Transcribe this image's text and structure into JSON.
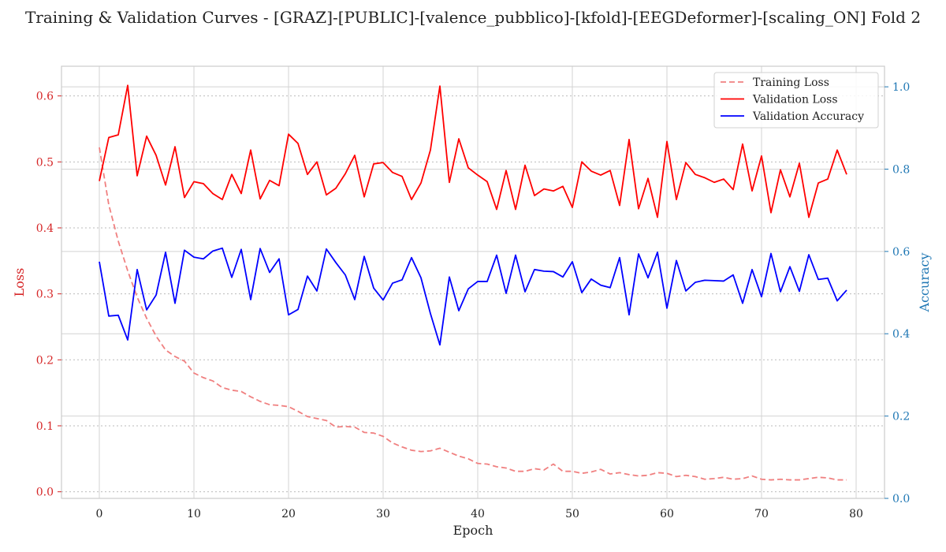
{
  "chart_data": {
    "type": "line",
    "title": "Training & Validation Curves - [GRAZ]-[PUBLIC]-[valence_pubblico]-[kfold]-[EEGDeformer]-[scaling_ON] Fold 2",
    "xlabel": "Epoch",
    "ylabel_left": "Loss",
    "ylabel_right": "Accuracy",
    "xlim": [
      -4,
      83
    ],
    "ylim_left": [
      -0.01,
      0.645
    ],
    "ylim_right": [
      0.0,
      1.05
    ],
    "x_ticks": [
      0,
      10,
      20,
      30,
      40,
      50,
      60,
      70,
      80
    ],
    "y_left_ticks": [
      0.0,
      0.1,
      0.2,
      0.3,
      0.4,
      0.5,
      0.6
    ],
    "y_right_ticks": [
      0.0,
      0.2,
      0.4,
      0.6,
      0.8,
      1.0
    ],
    "grid": true,
    "legend_position": "top-right",
    "colors": {
      "training_loss": "#f08080",
      "validation_loss": "#ff0000",
      "validation_accuracy": "#0000ff",
      "left_axis": "#d62728",
      "right_axis": "#1f77b4"
    },
    "series": [
      {
        "name": "Training Loss",
        "axis": "left",
        "style": "dashed",
        "values": [
          0.522,
          0.435,
          0.38,
          0.335,
          0.295,
          0.263,
          0.236,
          0.215,
          0.205,
          0.198,
          0.18,
          0.173,
          0.168,
          0.158,
          0.154,
          0.152,
          0.144,
          0.137,
          0.132,
          0.131,
          0.129,
          0.122,
          0.114,
          0.111,
          0.108,
          0.098,
          0.099,
          0.098,
          0.09,
          0.089,
          0.084,
          0.074,
          0.068,
          0.063,
          0.061,
          0.062,
          0.066,
          0.06,
          0.054,
          0.05,
          0.043,
          0.042,
          0.038,
          0.036,
          0.031,
          0.031,
          0.035,
          0.033,
          0.042,
          0.031,
          0.031,
          0.028,
          0.03,
          0.034,
          0.027,
          0.029,
          0.026,
          0.024,
          0.025,
          0.029,
          0.028,
          0.023,
          0.025,
          0.023,
          0.019,
          0.02,
          0.022,
          0.019,
          0.02,
          0.024,
          0.019,
          0.018,
          0.019,
          0.018,
          0.018,
          0.02,
          0.022,
          0.021,
          0.018,
          0.018
        ]
      },
      {
        "name": "Validation Loss",
        "axis": "left",
        "style": "solid",
        "values": [
          0.471,
          0.537,
          0.541,
          0.616,
          0.479,
          0.539,
          0.51,
          0.465,
          0.523,
          0.446,
          0.47,
          0.467,
          0.452,
          0.443,
          0.481,
          0.452,
          0.518,
          0.444,
          0.472,
          0.464,
          0.542,
          0.528,
          0.481,
          0.5,
          0.45,
          0.46,
          0.482,
          0.51,
          0.447,
          0.497,
          0.499,
          0.484,
          0.478,
          0.443,
          0.468,
          0.518,
          0.615,
          0.469,
          0.535,
          0.491,
          0.48,
          0.47,
          0.428,
          0.487,
          0.428,
          0.495,
          0.449,
          0.459,
          0.456,
          0.463,
          0.431,
          0.5,
          0.486,
          0.48,
          0.487,
          0.434,
          0.534,
          0.429,
          0.475,
          0.416,
          0.531,
          0.443,
          0.499,
          0.481,
          0.476,
          0.469,
          0.474,
          0.458,
          0.527,
          0.456,
          0.509,
          0.423,
          0.488,
          0.447,
          0.498,
          0.416,
          0.468,
          0.474,
          0.518,
          0.481
        ]
      },
      {
        "name": "Validation Accuracy",
        "axis": "right",
        "style": "solid",
        "values": [
          0.575,
          0.443,
          0.445,
          0.385,
          0.556,
          0.458,
          0.494,
          0.598,
          0.474,
          0.603,
          0.586,
          0.582,
          0.601,
          0.608,
          0.537,
          0.605,
          0.483,
          0.607,
          0.549,
          0.582,
          0.446,
          0.459,
          0.54,
          0.504,
          0.606,
          0.573,
          0.543,
          0.483,
          0.588,
          0.511,
          0.482,
          0.523,
          0.531,
          0.585,
          0.536,
          0.449,
          0.373,
          0.538,
          0.456,
          0.509,
          0.527,
          0.527,
          0.591,
          0.498,
          0.591,
          0.502,
          0.556,
          0.552,
          0.551,
          0.538,
          0.575,
          0.5,
          0.533,
          0.518,
          0.512,
          0.585,
          0.446,
          0.594,
          0.536,
          0.598,
          0.462,
          0.578,
          0.504,
          0.525,
          0.53,
          0.529,
          0.528,
          0.543,
          0.474,
          0.556,
          0.49,
          0.595,
          0.502,
          0.563,
          0.503,
          0.592,
          0.532,
          0.535,
          0.48,
          0.506
        ]
      }
    ]
  }
}
